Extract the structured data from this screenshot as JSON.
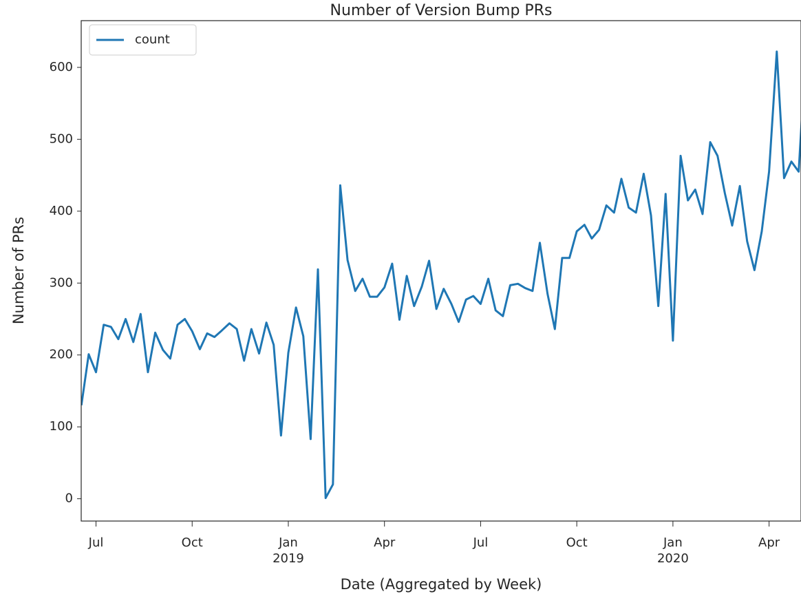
{
  "chart_data": {
    "type": "line",
    "title": "Number of Version Bump PRs",
    "x_label": "Date (Aggregated by Week)",
    "y_label": "Number of PRs",
    "x": [
      2018.462,
      2018.481,
      2018.5,
      2018.52,
      2018.539,
      2018.558,
      2018.577,
      2018.597,
      2018.616,
      2018.635,
      2018.654,
      2018.674,
      2018.693,
      2018.712,
      2018.731,
      2018.75,
      2018.77,
      2018.789,
      2018.808,
      2018.827,
      2018.847,
      2018.866,
      2018.885,
      2018.904,
      2018.924,
      2018.943,
      2018.962,
      2018.981,
      2019.0,
      2019.02,
      2019.039,
      2019.058,
      2019.077,
      2019.097,
      2019.116,
      2019.135,
      2019.154,
      2019.174,
      2019.193,
      2019.212,
      2019.231,
      2019.25,
      2019.27,
      2019.289,
      2019.308,
      2019.327,
      2019.347,
      2019.366,
      2019.385,
      2019.404,
      2019.424,
      2019.443,
      2019.462,
      2019.481,
      2019.5,
      2019.52,
      2019.539,
      2019.558,
      2019.577,
      2019.597,
      2019.616,
      2019.635,
      2019.654,
      2019.674,
      2019.693,
      2019.712,
      2019.731,
      2019.75,
      2019.77,
      2019.789,
      2019.808,
      2019.827,
      2019.847,
      2019.866,
      2019.885,
      2019.904,
      2019.924,
      2019.943,
      2019.962,
      2019.981,
      2020.0,
      2020.02,
      2020.039,
      2020.058,
      2020.077,
      2020.097,
      2020.116,
      2020.135,
      2020.154,
      2020.174,
      2020.193,
      2020.212,
      2020.231,
      2020.25,
      2020.27,
      2020.289,
      2020.308,
      2020.327,
      2020.346
    ],
    "series": [
      {
        "name": "count",
        "color": "#1f77b4",
        "values": [
          130,
          201,
          176,
          242,
          239,
          222,
          250,
          218,
          257,
          176,
          231,
          207,
          195,
          242,
          250,
          233,
          208,
          230,
          225,
          234,
          244,
          236,
          192,
          236,
          202,
          245,
          214,
          88,
          203,
          266,
          226,
          83,
          319,
          1,
          20,
          436,
          332,
          289,
          306,
          281,
          281,
          294,
          327,
          249,
          310,
          268,
          295,
          331,
          264,
          292,
          271,
          246,
          277,
          282,
          271,
          306,
          262,
          254,
          297,
          299,
          293,
          289,
          356,
          285,
          236,
          335,
          335,
          372,
          381,
          362,
          374,
          408,
          398,
          445,
          405,
          398,
          452,
          394,
          268,
          424,
          220,
          477,
          415,
          430,
          396,
          496,
          477,
          425,
          380,
          435,
          358,
          318,
          372,
          455,
          622,
          446,
          469,
          455,
          630
        ]
      }
    ],
    "xlim": [
      2018.4615,
      2020.333
    ],
    "xticks": [
      {
        "value": 2018.5,
        "label": "Jul"
      },
      {
        "value": 2018.75,
        "label": "Oct"
      },
      {
        "value": 2019.0,
        "label": "Jan"
      },
      {
        "value": 2019.25,
        "label": "Apr"
      },
      {
        "value": 2019.5,
        "label": "Jul"
      },
      {
        "value": 2019.75,
        "label": "Oct"
      },
      {
        "value": 2020.0,
        "label": "Jan"
      },
      {
        "value": 2020.25,
        "label": "Apr"
      }
    ],
    "year_labels": [
      {
        "value": 2019.0,
        "label": "2019"
      },
      {
        "value": 2020.0,
        "label": "2020"
      }
    ],
    "ylim": [
      -31,
      665
    ],
    "yticks": [
      0,
      100,
      200,
      300,
      400,
      500,
      600
    ],
    "legend": "upper left"
  }
}
